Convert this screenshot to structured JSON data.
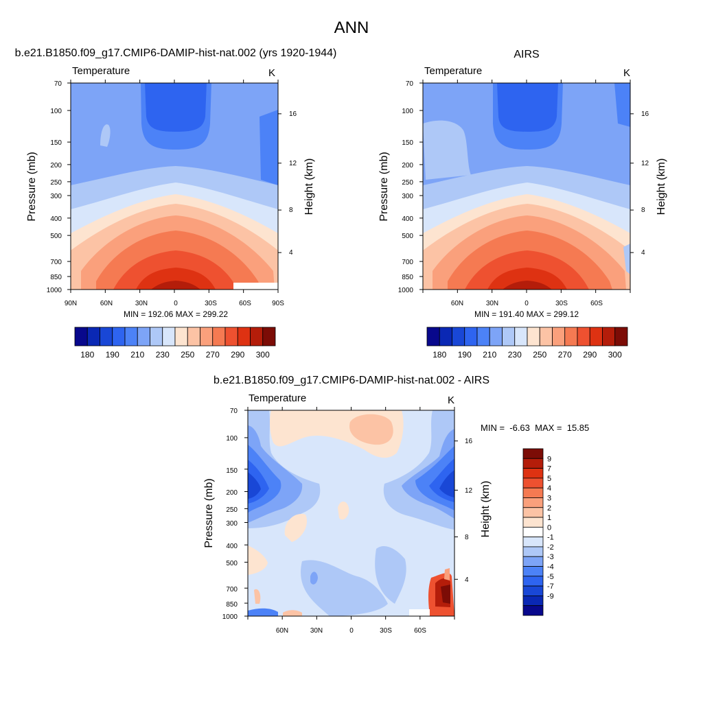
{
  "page": {
    "title": "ANN"
  },
  "chart_data": [
    {
      "type": "heatmap",
      "title": "b.e21.B1850.f09_g17.CMIP6-DAMIP-hist-nat.002 (yrs 1920-1944)",
      "left_label": "Temperature",
      "right_label": "K",
      "ylabel": "Pressure (mb)",
      "ylabel_right": "Height (km)",
      "xlim": [
        90,
        -90
      ],
      "x_ticks": [
        "90N",
        "60N",
        "30N",
        "0",
        "30S",
        "60S",
        "90S"
      ],
      "y_ticks": [
        "70",
        "100",
        "150",
        "200",
        "250",
        "300",
        "400",
        "500",
        "700",
        "850",
        "1000"
      ],
      "y_ticks_right": [
        "16",
        "12",
        "8",
        "4"
      ],
      "stats": "MIN = 192.06  MAX = 299.22",
      "stats_values": {
        "min": 192.06,
        "max": 299.22
      },
      "colorbar": {
        "orientation": "horizontal",
        "levels": [
          180,
          185,
          190,
          200,
          210,
          220,
          230,
          240,
          250,
          260,
          270,
          280,
          290,
          295,
          300
        ],
        "labels": [
          "180",
          "190",
          "210",
          "230",
          "250",
          "270",
          "290",
          "300"
        ],
        "colors": [
          "#08088c",
          "#0a28b4",
          "#1947d6",
          "#2e64f0",
          "#4c82f7",
          "#7da4f7",
          "#aec8f7",
          "#d8e6fb",
          "#fde4d0",
          "#fcc3a5",
          "#faa07c",
          "#f57a52",
          "#ee5130",
          "#de3212",
          "#b41d0a",
          "#7c0c06"
        ]
      }
    },
    {
      "type": "heatmap",
      "title": "AIRS",
      "left_label": "Temperature",
      "right_label": "K",
      "ylabel": "Pressure (mb)",
      "ylabel_right": "Height (km)",
      "xlim": [
        90,
        -90
      ],
      "x_ticks": [
        "60N",
        "30N",
        "0",
        "30S",
        "60S"
      ],
      "y_ticks": [
        "70",
        "100",
        "150",
        "200",
        "250",
        "300",
        "400",
        "500",
        "700",
        "850",
        "1000"
      ],
      "y_ticks_right": [
        "16",
        "12",
        "8",
        "4"
      ],
      "stats": "MIN = 191.40  MAX = 299.12",
      "stats_values": {
        "min": 191.4,
        "max": 299.12
      },
      "colorbar": {
        "orientation": "horizontal",
        "levels": [
          180,
          185,
          190,
          200,
          210,
          220,
          230,
          240,
          250,
          260,
          270,
          280,
          290,
          295,
          300
        ],
        "labels": [
          "180",
          "190",
          "210",
          "230",
          "250",
          "270",
          "290",
          "300"
        ],
        "colors": [
          "#08088c",
          "#0a28b4",
          "#1947d6",
          "#2e64f0",
          "#4c82f7",
          "#7da4f7",
          "#aec8f7",
          "#d8e6fb",
          "#fde4d0",
          "#fcc3a5",
          "#faa07c",
          "#f57a52",
          "#ee5130",
          "#de3212",
          "#b41d0a",
          "#7c0c06"
        ]
      }
    },
    {
      "type": "heatmap",
      "title": "b.e21.B1850.f09_g17.CMIP6-DAMIP-hist-nat.002 - AIRS",
      "left_label": "Temperature",
      "right_label": "K",
      "ylabel": "Pressure (mb)",
      "ylabel_right": "Height (km)",
      "xlim": [
        90,
        -90
      ],
      "x_ticks": [
        "60N",
        "30N",
        "0",
        "30S",
        "60S"
      ],
      "y_ticks": [
        "70",
        "100",
        "150",
        "200",
        "250",
        "300",
        "400",
        "500",
        "700",
        "850",
        "1000"
      ],
      "y_ticks_right": [
        "16",
        "12",
        "8",
        "4"
      ],
      "stats": "MIN =  -6.63  MAX =  15.85",
      "stats_values": {
        "min": -6.63,
        "max": 15.85
      },
      "colorbar": {
        "orientation": "vertical",
        "levels": [
          -9,
          -7,
          -5,
          -4,
          -3,
          -2,
          -1,
          0,
          1,
          2,
          3,
          4,
          5,
          7,
          9
        ],
        "labels": [
          "9",
          "7",
          "5",
          "4",
          "3",
          "2",
          "1",
          "0",
          "-1",
          "-2",
          "-3",
          "-4",
          "-5",
          "-7",
          "-9"
        ],
        "colors": [
          "#7c0c06",
          "#b41d0a",
          "#de3212",
          "#ee5130",
          "#f57a52",
          "#faa07c",
          "#fcc3a5",
          "#fde4d0",
          "#ffffff",
          "#d8e6fb",
          "#aec8f7",
          "#7da4f7",
          "#4c82f7",
          "#2e64f0",
          "#1947d6",
          "#0a28b4",
          "#08088c"
        ]
      }
    }
  ]
}
